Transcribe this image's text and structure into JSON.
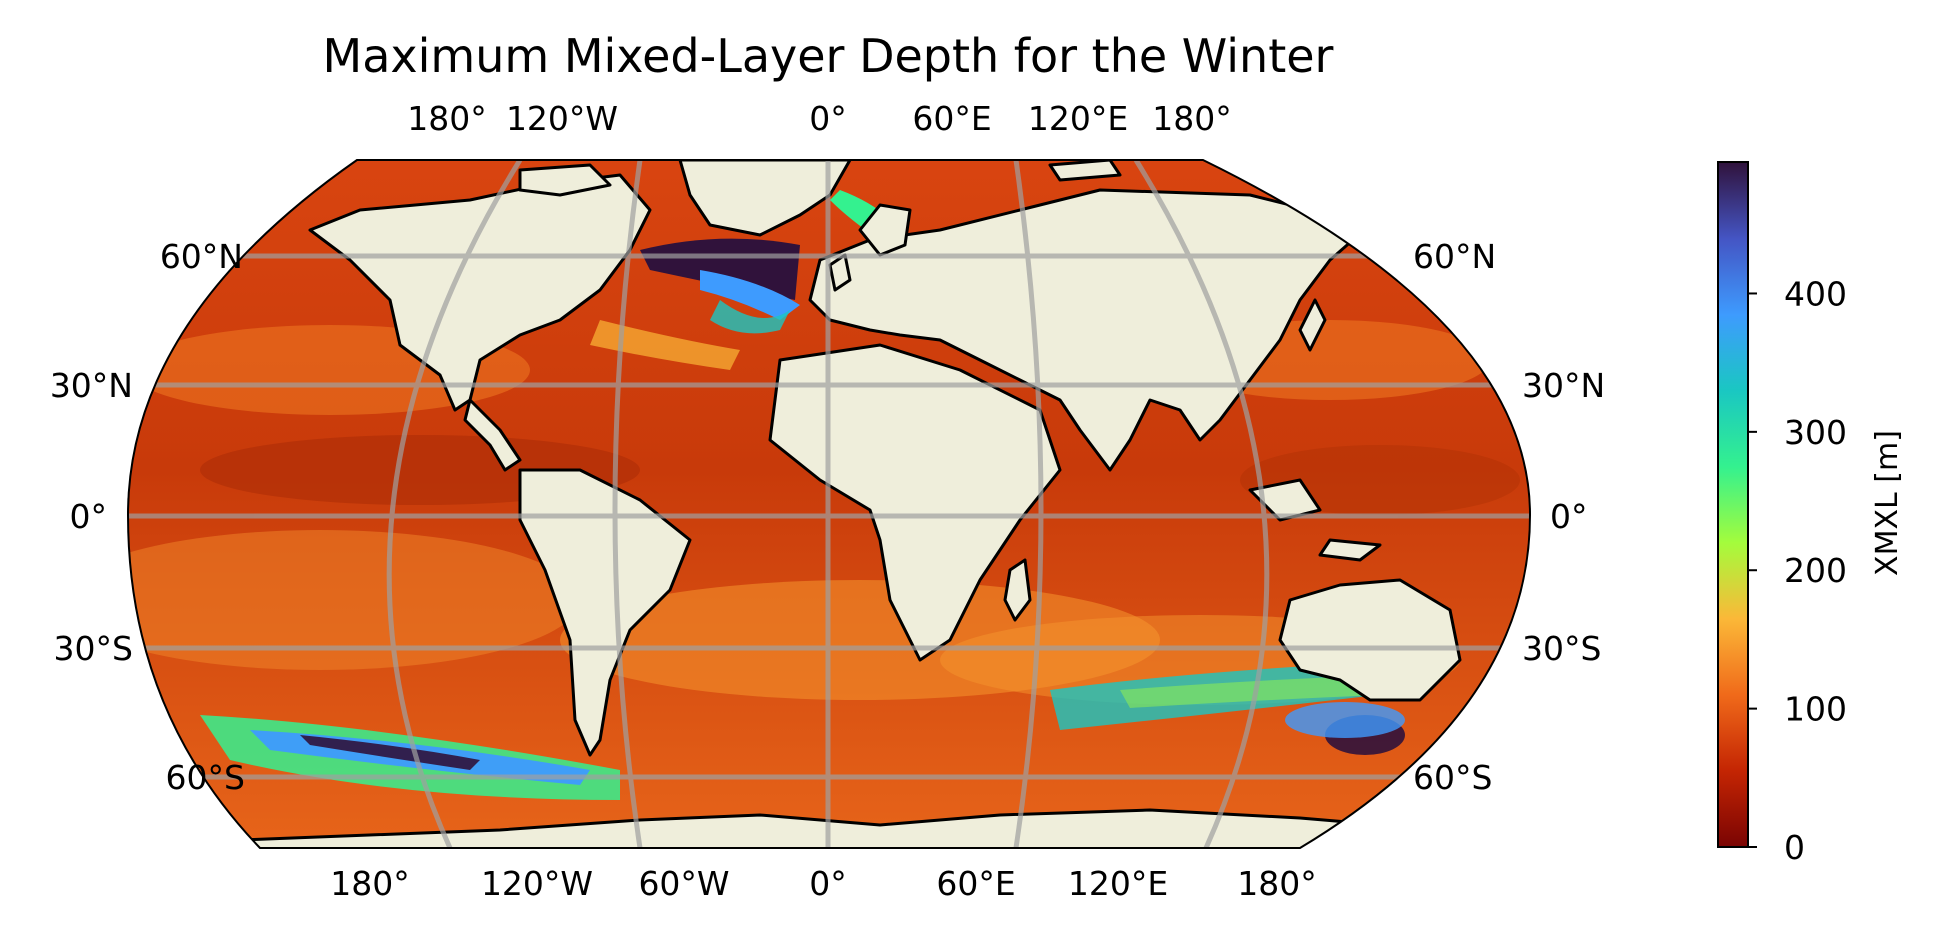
{
  "title": "Maximum Mixed-Layer Depth for the Winter",
  "map": {
    "projection": "Robinson",
    "land_color": "#efeedb",
    "coastline_color": "#000000",
    "gridline_color": "#a0a0a0",
    "lon_labels_top": [
      "180°",
      "120°W",
      "0°",
      "60°E",
      "120°E",
      "180°"
    ],
    "lon_labels_bottom": [
      "180°",
      "120°W",
      "60°W",
      "0°",
      "60°E",
      "120°E",
      "180°"
    ],
    "lat_labels_left": [
      "60°N",
      "30°N",
      "0°",
      "30°S",
      "60°S"
    ],
    "lat_labels_right": [
      "60°N",
      "30°N",
      "0°",
      "30°S",
      "60°S"
    ]
  },
  "colorbar": {
    "label": "XMXL [m]",
    "min": 0,
    "max": 495,
    "ticks": [
      "0",
      "100",
      "200",
      "300",
      "400"
    ],
    "colormap": [
      "#7a0403",
      "#c42503",
      "#f06a1a",
      "#fbb838",
      "#a4fc3c",
      "#34f18f",
      "#1ac7c2",
      "#3e9bfe",
      "#4455c4",
      "#30123b"
    ]
  }
}
